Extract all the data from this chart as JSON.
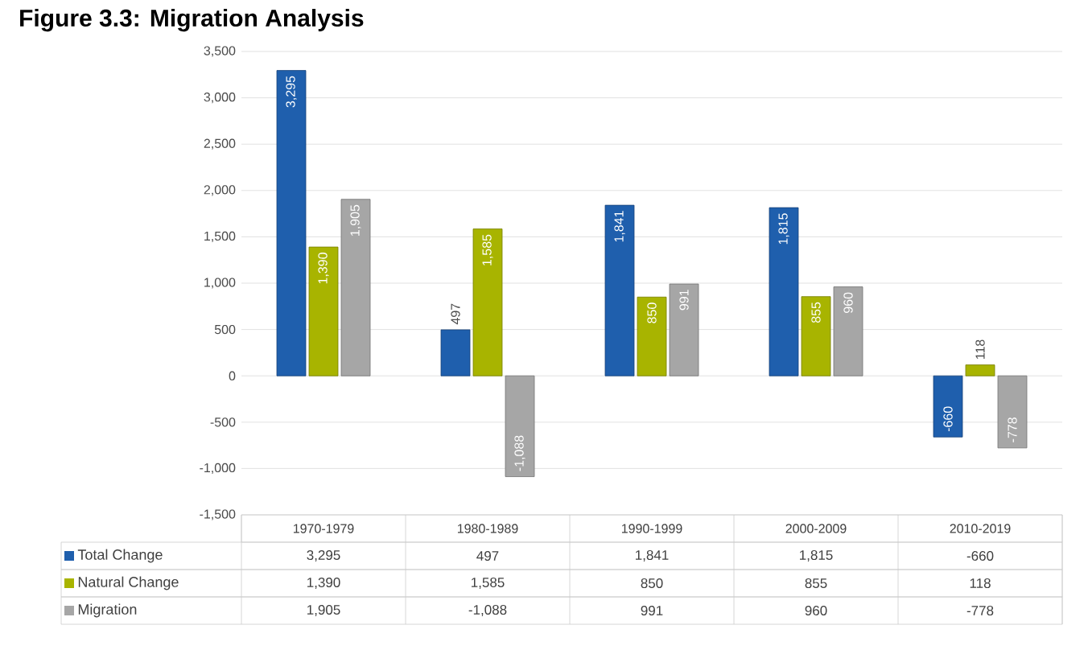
{
  "chart_data": {
    "type": "bar",
    "title": "Figure 3.3: Migration Analysis",
    "categories": [
      "1970-1979",
      "1980-1989",
      "1990-1999",
      "2000-2009",
      "2010-2019"
    ],
    "series": [
      {
        "name": "Total Change",
        "color": "#1f5fad",
        "values": [
          3295,
          497,
          1841,
          1815,
          -660
        ],
        "value_labels": [
          "3,295",
          "497",
          "1,841",
          "1,815",
          "-660"
        ]
      },
      {
        "name": "Natural Change",
        "color": "#a8b400",
        "values": [
          1390,
          1585,
          850,
          855,
          118
        ],
        "value_labels": [
          "1,390",
          "1,585",
          "850",
          "855",
          "118"
        ]
      },
      {
        "name": "Migration",
        "color": "#a6a6a6",
        "values": [
          1905,
          -1088,
          991,
          960,
          -778
        ],
        "value_labels": [
          "1,905",
          "-1,088",
          "991",
          "960",
          "-778"
        ]
      }
    ],
    "ylim": [
      -1500,
      3500
    ],
    "yticks": [
      {
        "value": -1500,
        "label": "-1,500"
      },
      {
        "value": -1000,
        "label": "-1,000"
      },
      -500,
      0,
      500,
      {
        "value": 1000,
        "label": "1,000"
      },
      {
        "value": 1500,
        "label": "1,500"
      },
      {
        "value": 2000,
        "label": "2,000"
      },
      {
        "value": 2500,
        "label": "2,500"
      },
      {
        "value": 3000,
        "label": "3,000"
      },
      {
        "value": 3500,
        "label": "3,500"
      }
    ],
    "grid": "y",
    "legend": "bottom"
  }
}
